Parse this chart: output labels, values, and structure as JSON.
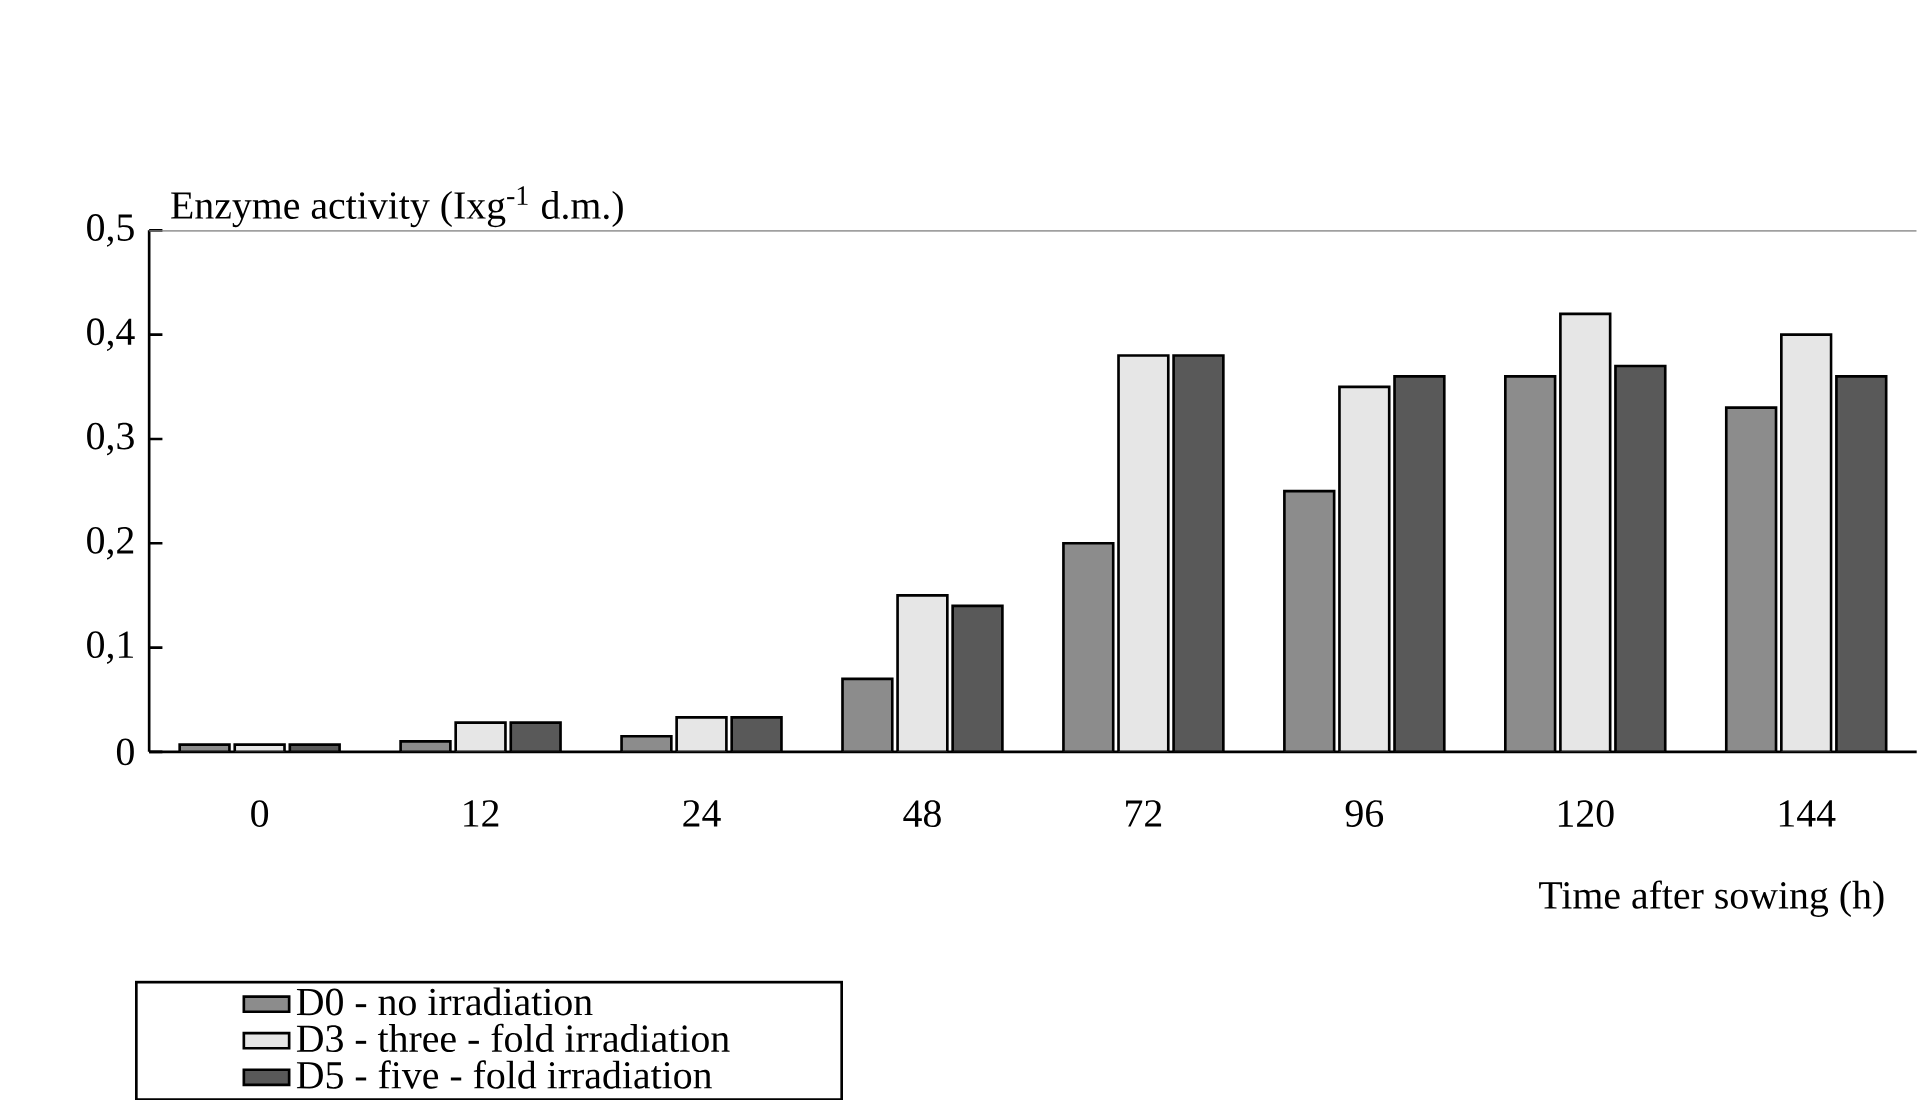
{
  "chart_data": {
    "type": "bar",
    "ylabel": "Enzyme activity (Ixg$^{-1}$ d.m.)",
    "xlabel": "Time after sowing (h)",
    "categories": [
      "0",
      "12",
      "24",
      "48",
      "72",
      "96",
      "120",
      "144"
    ],
    "series": [
      {
        "name": "D0 - no irradiation",
        "color": "#8c8c8c",
        "values": [
          0.007,
          0.01,
          0.015,
          0.07,
          0.2,
          0.25,
          0.36,
          0.33
        ]
      },
      {
        "name": "D3 - three - fold irradiation",
        "color": "#e6e6e6",
        "values": [
          0.007,
          0.028,
          0.033,
          0.15,
          0.38,
          0.35,
          0.42,
          0.4
        ]
      },
      {
        "name": "D5 - five - fold irradiation",
        "color": "#595959",
        "values": [
          0.007,
          0.028,
          0.033,
          0.14,
          0.38,
          0.36,
          0.37,
          0.36
        ]
      }
    ],
    "ylim": [
      0,
      0.5
    ],
    "yticks": [
      0,
      {
        "value": 0.1,
        "label": "0,1"
      },
      {
        "value": 0.2,
        "label": "0,2"
      },
      {
        "value": 0.3,
        "label": "0,3"
      },
      {
        "value": 0.4,
        "label": "0,4"
      },
      {
        "value": 0.5,
        "label": "0,5"
      }
    ],
    "legend": "bottom left"
  }
}
